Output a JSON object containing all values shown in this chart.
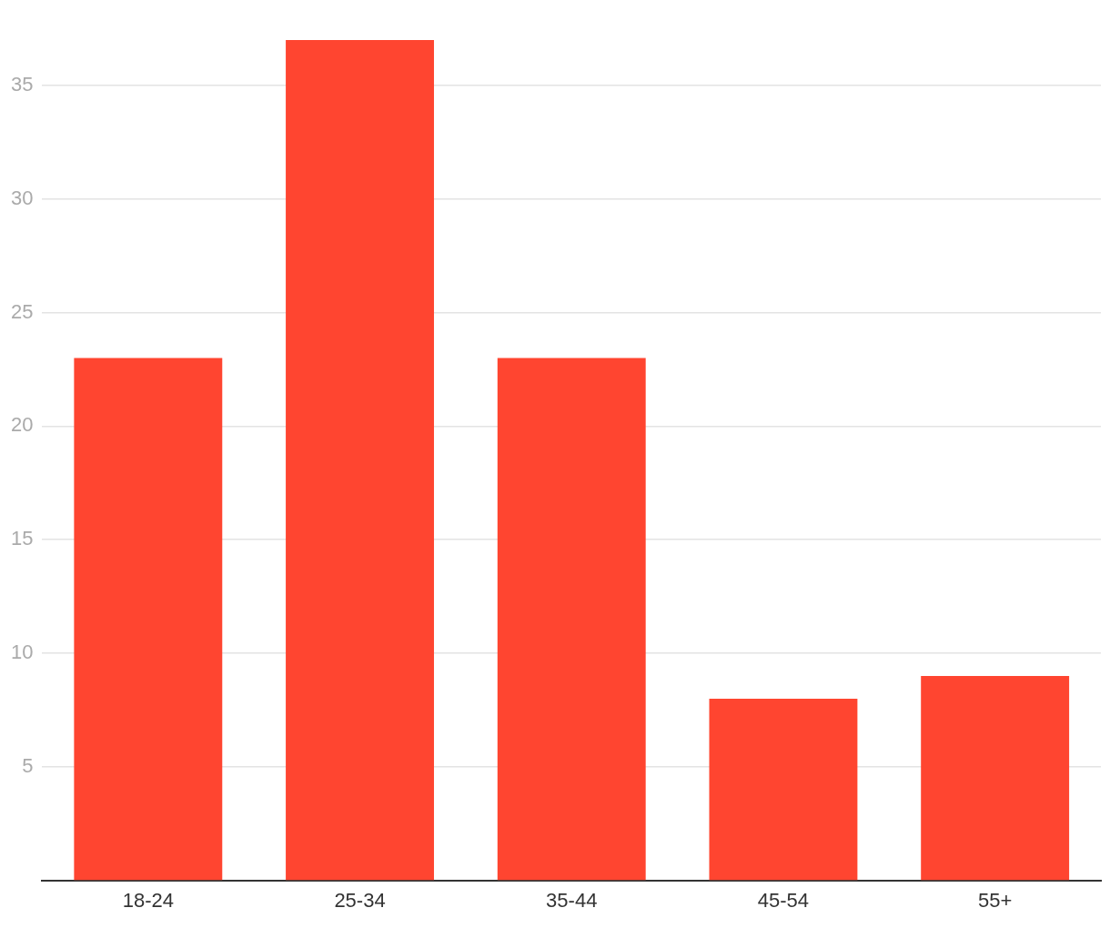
{
  "chart_data": {
    "type": "bar",
    "categories": [
      "18-24",
      "25-34",
      "35-44",
      "45-54",
      "55+"
    ],
    "values": [
      23,
      37,
      23,
      8,
      9
    ],
    "color": "#ff4530",
    "ylim": [
      0,
      37
    ],
    "yticks": [
      5,
      10,
      15,
      20,
      25,
      30,
      35
    ],
    "grid": "y"
  }
}
